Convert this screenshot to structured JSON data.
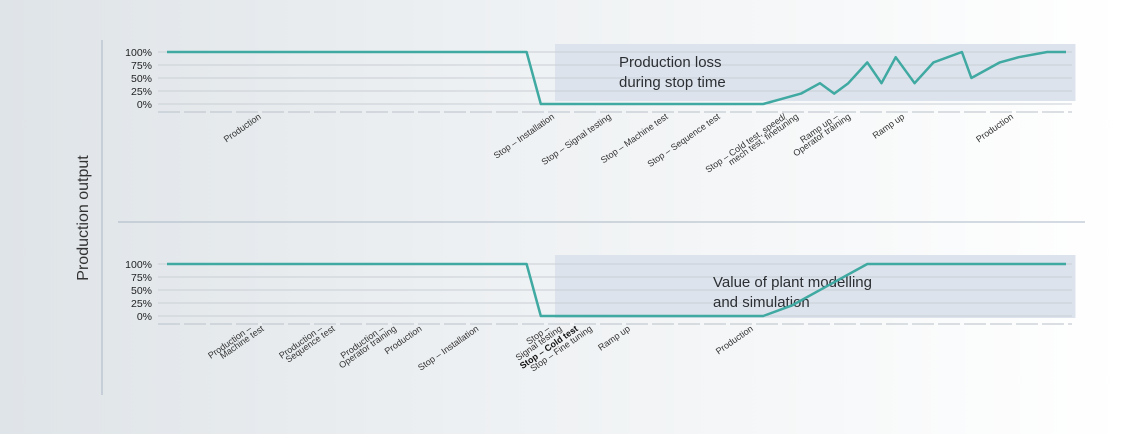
{
  "y_axis_label": "Production output",
  "colors": {
    "line": "#3fa9a2",
    "shade": "#dde3ec",
    "grid": "#c9cfd5",
    "divider": "#aab6c4"
  },
  "chart_data": [
    {
      "type": "line",
      "ylim": [
        0,
        100
      ],
      "yticks": [
        "100%",
        "75%",
        "50%",
        "25%",
        "0%"
      ],
      "annotation": [
        "Production loss",
        "during stop time"
      ],
      "x": [
        0,
        38,
        39.5,
        60,
        63,
        65,
        67,
        69,
        70.5,
        72,
        74,
        75.5,
        77,
        79,
        81,
        84,
        85,
        88,
        90,
        93,
        95
      ],
      "y": [
        100,
        100,
        0,
        0,
        0,
        10,
        20,
        40,
        20,
        40,
        80,
        40,
        90,
        40,
        80,
        100,
        50,
        80,
        90,
        100,
        100
      ],
      "shade_x": [
        41,
        96
      ],
      "phases": [
        {
          "label": "Production",
          "x": 10
        },
        {
          "label": "Stop – Installation",
          "x": 41
        },
        {
          "label": "Stop – Signal testing",
          "x": 47
        },
        {
          "label": "Stop – Machine test",
          "x": 53
        },
        {
          "label": "Stop – Sequence test",
          "x": 58.5
        },
        {
          "label": "Stop – Cold test, speed/",
          "x": 65.5
        },
        {
          "label": "mech test, finetuning",
          "x": 66.8
        },
        {
          "label": "Ramp up –",
          "x": 71
        },
        {
          "label": "Operator training",
          "x": 72.3
        },
        {
          "label": "Ramp up",
          "x": 78
        },
        {
          "label": "Production",
          "x": 89.5
        }
      ]
    },
    {
      "type": "line",
      "ylim": [
        0,
        100
      ],
      "yticks": [
        "100%",
        "75%",
        "50%",
        "25%",
        "0%"
      ],
      "annotation": [
        "Value of plant modelling",
        "and simulation"
      ],
      "x": [
        0,
        38,
        39.5,
        60,
        63,
        66,
        70,
        74,
        95
      ],
      "y": [
        100,
        100,
        0,
        0,
        0,
        20,
        60,
        100,
        100
      ],
      "shade_x": [
        41,
        96
      ],
      "phases": [
        {
          "label": "Production –",
          "x": 9
        },
        {
          "label": "Machine test",
          "x": 10.3
        },
        {
          "label": "Production –",
          "x": 16.5
        },
        {
          "label": "Sequence test",
          "x": 17.8
        },
        {
          "label": "Production –",
          "x": 23
        },
        {
          "label": "Operator training",
          "x": 24.3
        },
        {
          "label": "Production",
          "x": 27
        },
        {
          "label": "Stop – Installation",
          "x": 33
        },
        {
          "label": "Stop –",
          "x": 40.5
        },
        {
          "label": "Signal testing",
          "x": 41.8
        },
        {
          "label": "Stop – Cold test",
          "x": 43.5,
          "bold": true
        },
        {
          "label": "Stop – Fine tuning",
          "x": 45
        },
        {
          "label": "Ramp up",
          "x": 49
        },
        {
          "label": "Production",
          "x": 62
        }
      ]
    }
  ]
}
